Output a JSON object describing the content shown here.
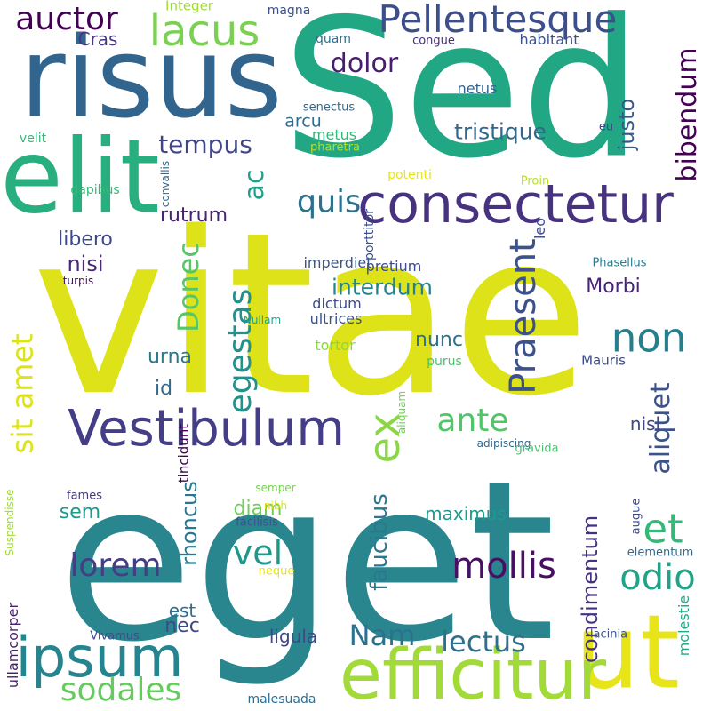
{
  "words": [
    {
      "text": "vitae",
      "color": "#dde318",
      "rot": 0
    },
    {
      "text": "eget",
      "color": "#2a868e",
      "rot": 0
    },
    {
      "text": "Sed",
      "color": "#22a785",
      "rot": 0
    },
    {
      "text": "risus",
      "color": "#32658e",
      "rot": 0
    },
    {
      "text": "elit",
      "color": "#29af7f",
      "rot": 0
    },
    {
      "text": "ut",
      "color": "#e7e419",
      "rot": 0
    },
    {
      "text": "efficitur",
      "color": "#a2da37",
      "rot": 0
    },
    {
      "text": "consectetur",
      "color": "#46327e",
      "rot": 0
    },
    {
      "text": "Vestibulum",
      "color": "#433e85",
      "rot": 0
    },
    {
      "text": "ipsum",
      "color": "#25858e",
      "rot": 0
    },
    {
      "text": "Pellentesque",
      "color": "#3c4f8a",
      "rot": 0
    },
    {
      "text": "lacus",
      "color": "#7ad151",
      "rot": 0
    },
    {
      "text": "auctor",
      "color": "#440154",
      "rot": 0
    },
    {
      "text": "ex",
      "color": "#8bd646",
      "rot": 90
    },
    {
      "text": "non",
      "color": "#277f8e",
      "rot": 0
    },
    {
      "text": "mollis",
      "color": "#471063",
      "rot": 0
    },
    {
      "text": "et",
      "color": "#35b779",
      "rot": 0
    },
    {
      "text": "odio",
      "color": "#20a386",
      "rot": 0
    },
    {
      "text": "sodales",
      "color": "#65cb5e",
      "rot": 0
    },
    {
      "text": "lorem",
      "color": "#433e85",
      "rot": 0
    },
    {
      "text": "vel",
      "color": "#1f978b",
      "rot": 0
    },
    {
      "text": "quis",
      "color": "#2c728e",
      "rot": 0
    },
    {
      "text": "ante",
      "color": "#52c569",
      "rot": 0
    },
    {
      "text": "sit amet",
      "color": "#dde318",
      "rot": 90
    },
    {
      "text": "Praesent",
      "color": "#3b528b",
      "rot": 90
    },
    {
      "text": "egestas",
      "color": "#21918c",
      "rot": 90
    },
    {
      "text": "lectus",
      "color": "#2d708e",
      "rot": 0
    },
    {
      "text": "Nam",
      "color": "#2c728e",
      "rot": 0
    },
    {
      "text": "Donec",
      "color": "#56c667",
      "rot": 90
    },
    {
      "text": "tempus",
      "color": "#404688",
      "rot": 0
    },
    {
      "text": "bibendum",
      "color": "#440154",
      "rot": 90
    },
    {
      "text": "dolor",
      "color": "#481f70",
      "rot": 0
    },
    {
      "text": "tristique",
      "color": "#31688e",
      "rot": 0
    },
    {
      "text": "ac",
      "color": "#1f9e89",
      "rot": 90
    },
    {
      "text": "aliquet",
      "color": "#3b528b",
      "rot": 90
    },
    {
      "text": "faucibus",
      "color": "#2a788e",
      "rot": 90
    },
    {
      "text": "interdum",
      "color": "#26828e",
      "rot": 0
    },
    {
      "text": "nunc",
      "color": "#2c728e",
      "rot": 0
    },
    {
      "text": "Morbi",
      "color": "#482475",
      "rot": 0
    },
    {
      "text": "condimentum",
      "color": "#46327e",
      "rot": 90
    },
    {
      "text": "justo",
      "color": "#38588c",
      "rot": 90
    },
    {
      "text": "rutrum",
      "color": "#482374",
      "rot": 0
    },
    {
      "text": "nisi",
      "color": "#482878",
      "rot": 0
    },
    {
      "text": "libero",
      "color": "#3e4989",
      "rot": 0
    },
    {
      "text": "Cras",
      "color": "#453781",
      "rot": 0
    },
    {
      "text": "urna",
      "color": "#2a788e",
      "rot": 0
    },
    {
      "text": "id",
      "color": "#31688e",
      "rot": 0
    },
    {
      "text": "rhoncus",
      "color": "#2a788e",
      "rot": 90
    },
    {
      "text": "sem",
      "color": "#1f988b",
      "rot": 0
    },
    {
      "text": "nec",
      "color": "#3e4989",
      "rot": 0
    },
    {
      "text": "ligula",
      "color": "#3e4989",
      "rot": 0
    },
    {
      "text": "diam",
      "color": "#6ece58",
      "rot": 0
    },
    {
      "text": "est",
      "color": "#2e6f8e",
      "rot": 0
    },
    {
      "text": "nisl",
      "color": "#404688",
      "rot": 0
    },
    {
      "text": "maximus",
      "color": "#1f9a8a",
      "rot": 0
    },
    {
      "text": "arcu",
      "color": "#2e6e8e",
      "rot": 0
    },
    {
      "text": "imperdiet",
      "color": "#3a548c",
      "rot": 0
    },
    {
      "text": "pretium",
      "color": "#3e4c8a",
      "rot": 0
    },
    {
      "text": "dictum",
      "color": "#3e4c8a",
      "rot": 0
    },
    {
      "text": "ultrices",
      "color": "#3b528b",
      "rot": 0
    },
    {
      "text": "tortor",
      "color": "#8bd646",
      "rot": 0
    },
    {
      "text": "purus",
      "color": "#4ac16d",
      "rot": 0
    },
    {
      "text": "Mauris",
      "color": "#3e4989",
      "rot": 0
    },
    {
      "text": "metus",
      "color": "#35b779",
      "rot": 0
    },
    {
      "text": "pharetra",
      "color": "#b5de2b",
      "rot": 0
    },
    {
      "text": "senectus",
      "color": "#31688e",
      "rot": 0
    },
    {
      "text": "netus",
      "color": "#33638d",
      "rot": 0
    },
    {
      "text": "quam",
      "color": "#2c728e",
      "rot": 0
    },
    {
      "text": "congue",
      "color": "#472d7b",
      "rot": 0
    },
    {
      "text": "habitant",
      "color": "#3b528b",
      "rot": 0
    },
    {
      "text": "Integer",
      "color": "#a0da39",
      "rot": 0
    },
    {
      "text": "magna",
      "color": "#3b528b",
      "rot": 0
    },
    {
      "text": "velit",
      "color": "#35b779",
      "rot": 0
    },
    {
      "text": "dapibus",
      "color": "#35b779",
      "rot": 0
    },
    {
      "text": "convallis",
      "color": "#31688e",
      "rot": 90
    },
    {
      "text": "potenti",
      "color": "#e5e419",
      "rot": 0
    },
    {
      "text": "Proin",
      "color": "#b5de2b",
      "rot": 0
    },
    {
      "text": "eu",
      "color": "#3e4989",
      "rot": 0
    },
    {
      "text": "porttitor",
      "color": "#3b528b",
      "rot": 90
    },
    {
      "text": "leo",
      "color": "#3e4989",
      "rot": 90
    },
    {
      "text": "Phasellus",
      "color": "#287c8e",
      "rot": 0
    },
    {
      "text": "turpis",
      "color": "#471063",
      "rot": 0
    },
    {
      "text": "Nullam",
      "color": "#20a386",
      "rot": 0
    },
    {
      "text": "aliquam",
      "color": "#6ece58",
      "rot": 90
    },
    {
      "text": "adipiscing",
      "color": "#31688e",
      "rot": 0
    },
    {
      "text": "gravida",
      "color": "#4ac16d",
      "rot": 0
    },
    {
      "text": "tincidunt",
      "color": "#440154",
      "rot": 90
    },
    {
      "text": "semper",
      "color": "#7ad151",
      "rot": 0
    },
    {
      "text": "fames",
      "color": "#46327e",
      "rot": 0
    },
    {
      "text": "nibh",
      "color": "#dde318",
      "rot": 0
    },
    {
      "text": "facilisis",
      "color": "#3b528b",
      "rot": 0
    },
    {
      "text": "neque",
      "color": "#e5e419",
      "rot": 0
    },
    {
      "text": "augue",
      "color": "#3e4989",
      "rot": 90
    },
    {
      "text": "elementum",
      "color": "#31688e",
      "rot": 0
    },
    {
      "text": "Suspendisse",
      "color": "#a0da39",
      "rot": 90
    },
    {
      "text": "ullamcorper",
      "color": "#481f70",
      "rot": 90
    },
    {
      "text": "Vivamus",
      "color": "#3e4c8a",
      "rot": 0
    },
    {
      "text": "molestie",
      "color": "#22a785",
      "rot": 90
    },
    {
      "text": "lacinia",
      "color": "#3b528b",
      "rot": 0
    },
    {
      "text": "malesuada",
      "color": "#2e6e8e",
      "rot": 0
    }
  ]
}
